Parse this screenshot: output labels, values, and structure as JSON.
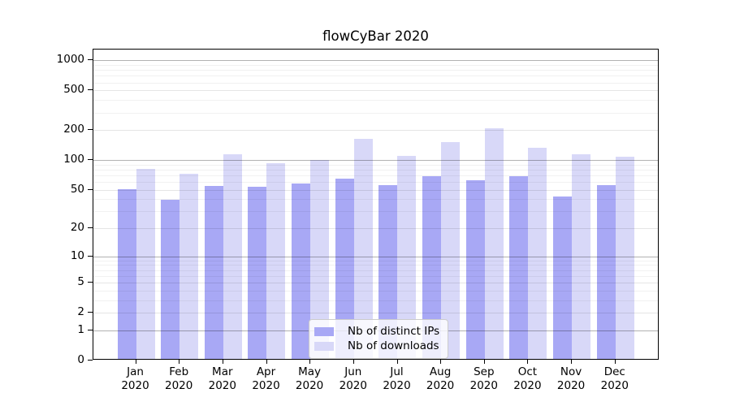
{
  "title": "flowCyBar 2020",
  "chart_data": {
    "type": "bar",
    "categories": [
      {
        "month": "Jan",
        "year": "2020"
      },
      {
        "month": "Feb",
        "year": "2020"
      },
      {
        "month": "Mar",
        "year": "2020"
      },
      {
        "month": "Apr",
        "year": "2020"
      },
      {
        "month": "May",
        "year": "2020"
      },
      {
        "month": "Jun",
        "year": "2020"
      },
      {
        "month": "Jul",
        "year": "2020"
      },
      {
        "month": "Aug",
        "year": "2020"
      },
      {
        "month": "Sep",
        "year": "2020"
      },
      {
        "month": "Oct",
        "year": "2020"
      },
      {
        "month": "Nov",
        "year": "2020"
      },
      {
        "month": "Dec",
        "year": "2020"
      }
    ],
    "series": [
      {
        "name": "Nb of distinct IPs",
        "color": "#a8a8f5",
        "values": [
          49,
          38,
          53,
          52,
          56,
          62,
          54,
          66,
          60,
          66,
          41,
          54
        ]
      },
      {
        "name": "Nb of downloads",
        "color": "#d8d8f8",
        "values": [
          79,
          70,
          110,
          89,
          97,
          157,
          106,
          146,
          200,
          129,
          111,
          104
        ]
      }
    ],
    "yticks": [
      0,
      1,
      2,
      5,
      10,
      20,
      50,
      100,
      200,
      500,
      1000
    ],
    "major_gridline_values": [
      1,
      10,
      100,
      1000
    ],
    "mid_gridline_values": [
      2,
      5,
      20,
      50,
      200,
      500
    ],
    "scale": "log10(1+v)",
    "ylim": [
      0,
      1280
    ],
    "grid": "on",
    "legend_position": "lower center"
  },
  "colors": {
    "background": "#ffffff",
    "axis": "#000000",
    "text": "#000000",
    "grid_major": "#b3b3b3",
    "grid_minor": "#f0f0f0",
    "legend_border": "#cccccc",
    "series_distinct_ips": "#a8a8f5",
    "series_downloads": "#d8d8f8"
  }
}
